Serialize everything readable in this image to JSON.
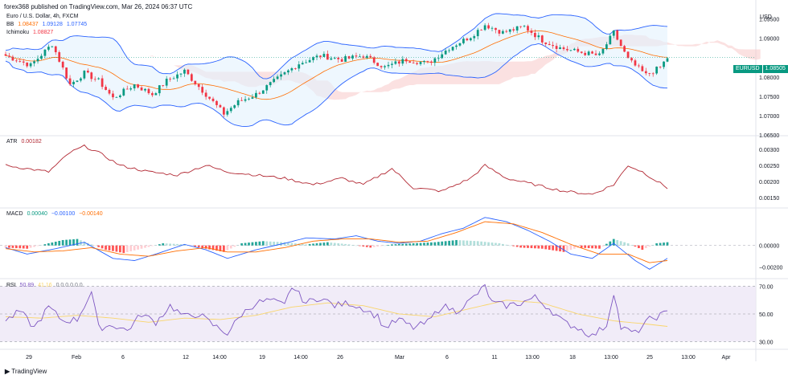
{
  "header": {
    "publisher_line": "forex368 published on TradingView.com, Mar 26, 2024 06:37 UTC"
  },
  "legend_main": {
    "symbol_line": "Euro / U.S. Dollar, 4h, FXCM",
    "bb_label": "BB",
    "bb_values": [
      "1.08437",
      "1.09128",
      "1.07745"
    ],
    "ichimoku_label": "Ichimoku",
    "ichimoku_value": "1.08827"
  },
  "legend_atr": {
    "label": "ATR",
    "value": "0.00182"
  },
  "legend_macd": {
    "label": "MACD",
    "values": [
      "0.00040",
      "−0.00100",
      "−0.00140"
    ]
  },
  "legend_rsi": {
    "label": "RSI",
    "value": "50.89",
    "value2": "41.16",
    "extra": "0 0 0 0 0 0"
  },
  "currency": "USD",
  "last_price": {
    "symbol": "EURUSD",
    "price": "1.08505"
  },
  "footer": {
    "brand": "TradingView"
  },
  "colors": {
    "up": "#089981",
    "down": "#f23645",
    "bb_line": "#2962ff",
    "bb_fill": "#e3f2fd",
    "kumo": "#f8c9c9",
    "atr": "#b22833",
    "macd_line": "#2962ff",
    "signal": "#ff6d00",
    "rsi_line": "#7e57c2",
    "rsi_ma": "#f9d56b",
    "rsi_band": "#ede7f6"
  },
  "chart_data": [
    {
      "type": "candlestick",
      "title": "Euro / U.S. Dollar, 4h, FXCM",
      "ylim": [
        1.065,
        1.097
      ],
      "yticks": [
        "1.09500",
        "1.09000",
        "1.08000",
        "1.07500",
        "1.07000",
        "1.06500"
      ],
      "last_price": 1.08505,
      "x_labels": [
        "29",
        "Feb",
        "6",
        "12",
        "14:00",
        "19",
        "14:00",
        "26",
        "Mar",
        "6",
        "11",
        "13:00",
        "18",
        "13:00",
        "25",
        "13:00",
        "Apr"
      ],
      "anchors": [
        [
          0,
          1.0855
        ],
        [
          7,
          1.083
        ],
        [
          13,
          1.0885
        ],
        [
          18,
          1.078
        ],
        [
          22,
          1.081
        ],
        [
          26,
          1.079
        ],
        [
          30,
          1.0745
        ],
        [
          36,
          1.078
        ],
        [
          41,
          1.0755
        ],
        [
          45,
          1.079
        ],
        [
          50,
          1.0815
        ],
        [
          54,
          1.0775
        ],
        [
          61,
          1.0705
        ],
        [
          65,
          1.0735
        ],
        [
          70,
          1.0755
        ],
        [
          76,
          1.0795
        ],
        [
          82,
          1.0835
        ],
        [
          88,
          1.0855
        ],
        [
          94,
          1.0845
        ],
        [
          100,
          1.0855
        ],
        [
          106,
          1.0825
        ],
        [
          112,
          1.0845
        ],
        [
          118,
          1.0835
        ],
        [
          124,
          1.0875
        ],
        [
          130,
          1.0905
        ],
        [
          134,
          1.0935
        ],
        [
          139,
          1.0915
        ],
        [
          145,
          1.093
        ],
        [
          150,
          1.0895
        ],
        [
          155,
          1.0875
        ],
        [
          160,
          1.0865
        ],
        [
          166,
          1.0855
        ],
        [
          170,
          1.0915
        ],
        [
          174,
          1.0845
        ],
        [
          179,
          1.0805
        ],
        [
          183,
          1.0825
        ],
        [
          185,
          1.085
        ]
      ],
      "series": [
        {
          "name": "Bollinger Bands (BB)",
          "values": [
            "1.08437",
            "1.09128",
            "1.07745"
          ]
        },
        {
          "name": "Ichimoku cloud",
          "value": "1.08827"
        }
      ]
    },
    {
      "type": "line",
      "title": "ATR",
      "ylim": [
        0.0012,
        0.0034
      ],
      "yticks": [
        "0.00300",
        "0.00250",
        "0.00200",
        "0.00150"
      ],
      "anchors": [
        [
          0,
          0.0025
        ],
        [
          6,
          0.0024
        ],
        [
          12,
          0.0023
        ],
        [
          18,
          0.0029
        ],
        [
          22,
          0.0031
        ],
        [
          26,
          0.0029
        ],
        [
          32,
          0.0025
        ],
        [
          40,
          0.0023
        ],
        [
          48,
          0.0022
        ],
        [
          56,
          0.0025
        ],
        [
          62,
          0.0023
        ],
        [
          70,
          0.0022
        ],
        [
          78,
          0.0021
        ],
        [
          86,
          0.0019
        ],
        [
          94,
          0.0021
        ],
        [
          100,
          0.0019
        ],
        [
          108,
          0.0024
        ],
        [
          114,
          0.0018
        ],
        [
          122,
          0.0017
        ],
        [
          130,
          0.0021
        ],
        [
          134,
          0.0025
        ],
        [
          140,
          0.0021
        ],
        [
          148,
          0.0019
        ],
        [
          156,
          0.0017
        ],
        [
          164,
          0.0016
        ],
        [
          170,
          0.0019
        ],
        [
          174,
          0.0025
        ],
        [
          178,
          0.0023
        ],
        [
          185,
          0.0018
        ]
      ]
    },
    {
      "type": "bar",
      "title": "MACD",
      "ylim": [
        -0.003,
        0.0034
      ],
      "yticks": [
        "0.00000",
        "−0.00200"
      ],
      "hist_anchors": [
        [
          0,
          -0.0002
        ],
        [
          6,
          -0.0003
        ],
        [
          12,
          0.0002
        ],
        [
          16,
          0.0005
        ],
        [
          20,
          0.0006
        ],
        [
          24,
          0.0001
        ],
        [
          28,
          -0.0004
        ],
        [
          33,
          -0.0007
        ],
        [
          38,
          -0.0003
        ],
        [
          44,
          0.0002
        ],
        [
          50,
          0.0001
        ],
        [
          56,
          -0.0003
        ],
        [
          61,
          -0.0006
        ],
        [
          66,
          0.0002
        ],
        [
          72,
          0.0004
        ],
        [
          78,
          0.0003
        ],
        [
          84,
          0.0001
        ],
        [
          90,
          0.0003
        ],
        [
          96,
          0.0001
        ],
        [
          102,
          -0.0002
        ],
        [
          108,
          0.0001
        ],
        [
          114,
          0.0002
        ],
        [
          120,
          0.0003
        ],
        [
          126,
          0.0005
        ],
        [
          132,
          0.0004
        ],
        [
          138,
          0.0002
        ],
        [
          144,
          -0.0002
        ],
        [
          150,
          -0.0003
        ],
        [
          156,
          -0.0006
        ],
        [
          160,
          -0.0002
        ],
        [
          166,
          -0.0003
        ],
        [
          170,
          0.0006
        ],
        [
          174,
          0.0002
        ],
        [
          178,
          -0.0004
        ],
        [
          182,
          0.0002
        ],
        [
          185,
          0.0003
        ]
      ],
      "macd_anchors": [
        [
          0,
          -0.0002
        ],
        [
          6,
          -0.0008
        ],
        [
          14,
          -0.0003
        ],
        [
          22,
          0.0003
        ],
        [
          30,
          -0.0012
        ],
        [
          36,
          -0.0014
        ],
        [
          42,
          -0.0008
        ],
        [
          50,
          0.0001
        ],
        [
          56,
          -0.0004
        ],
        [
          62,
          -0.0012
        ],
        [
          70,
          -0.0004
        ],
        [
          78,
          0.0002
        ],
        [
          84,
          0.0007
        ],
        [
          92,
          0.0006
        ],
        [
          98,
          0.0009
        ],
        [
          104,
          0.0004
        ],
        [
          110,
          0.0002
        ],
        [
          116,
          0.0004
        ],
        [
          122,
          0.0011
        ],
        [
          128,
          0.0016
        ],
        [
          134,
          0.0026
        ],
        [
          140,
          0.0022
        ],
        [
          146,
          0.0014
        ],
        [
          152,
          0.0004
        ],
        [
          158,
          -0.0008
        ],
        [
          164,
          -0.0012
        ],
        [
          170,
          0.0002
        ],
        [
          176,
          -0.0014
        ],
        [
          180,
          -0.0022
        ],
        [
          185,
          -0.0012
        ]
      ],
      "signal_anchors": [
        [
          0,
          -0.0003
        ],
        [
          8,
          -0.0006
        ],
        [
          16,
          -0.0005
        ],
        [
          24,
          -0.0002
        ],
        [
          32,
          -0.0008
        ],
        [
          40,
          -0.001
        ],
        [
          48,
          -0.0005
        ],
        [
          56,
          -0.0002
        ],
        [
          62,
          -0.0006
        ],
        [
          70,
          -0.0006
        ],
        [
          78,
          -0.0002
        ],
        [
          86,
          0.0004
        ],
        [
          94,
          0.0006
        ],
        [
          102,
          0.0006
        ],
        [
          110,
          0.0003
        ],
        [
          118,
          0.0004
        ],
        [
          126,
          0.0012
        ],
        [
          134,
          0.0022
        ],
        [
          142,
          0.002
        ],
        [
          150,
          0.0012
        ],
        [
          158,
          0.0001
        ],
        [
          166,
          -0.0008
        ],
        [
          174,
          -0.0008
        ],
        [
          180,
          -0.0016
        ],
        [
          185,
          -0.0014
        ]
      ]
    },
    {
      "type": "line",
      "title": "RSI",
      "ylim": [
        25,
        75
      ],
      "yticks": [
        "70.00",
        "50.00",
        "30.00"
      ],
      "rsi_anchors": [
        [
          0,
          45
        ],
        [
          4,
          52
        ],
        [
          8,
          40
        ],
        [
          12,
          55
        ],
        [
          16,
          45
        ],
        [
          20,
          46
        ],
        [
          24,
          66
        ],
        [
          26,
          40
        ],
        [
          30,
          42
        ],
        [
          34,
          38
        ],
        [
          38,
          50
        ],
        [
          42,
          44
        ],
        [
          46,
          56
        ],
        [
          50,
          48
        ],
        [
          54,
          50
        ],
        [
          58,
          42
        ],
        [
          62,
          36
        ],
        [
          66,
          50
        ],
        [
          70,
          58
        ],
        [
          74,
          60
        ],
        [
          78,
          56
        ],
        [
          80,
          70
        ],
        [
          84,
          58
        ],
        [
          88,
          62
        ],
        [
          92,
          56
        ],
        [
          96,
          58
        ],
        [
          100,
          54
        ],
        [
          104,
          48
        ],
        [
          106,
          40
        ],
        [
          110,
          46
        ],
        [
          114,
          40
        ],
        [
          118,
          44
        ],
        [
          122,
          56
        ],
        [
          126,
          52
        ],
        [
          130,
          60
        ],
        [
          134,
          70
        ],
        [
          136,
          58
        ],
        [
          140,
          56
        ],
        [
          144,
          58
        ],
        [
          148,
          62
        ],
        [
          152,
          54
        ],
        [
          156,
          44
        ],
        [
          160,
          40
        ],
        [
          164,
          34
        ],
        [
          168,
          42
        ],
        [
          170,
          66
        ],
        [
          172,
          40
        ],
        [
          176,
          36
        ],
        [
          180,
          46
        ],
        [
          185,
          51
        ]
      ],
      "ma_anchors": [
        [
          0,
          48
        ],
        [
          10,
          47
        ],
        [
          20,
          49
        ],
        [
          30,
          47
        ],
        [
          40,
          44
        ],
        [
          50,
          47
        ],
        [
          60,
          46
        ],
        [
          70,
          49
        ],
        [
          80,
          55
        ],
        [
          90,
          58
        ],
        [
          100,
          56
        ],
        [
          110,
          50
        ],
        [
          120,
          48
        ],
        [
          130,
          54
        ],
        [
          140,
          60
        ],
        [
          150,
          58
        ],
        [
          160,
          50
        ],
        [
          170,
          45
        ],
        [
          178,
          43
        ],
        [
          185,
          41
        ]
      ]
    }
  ]
}
